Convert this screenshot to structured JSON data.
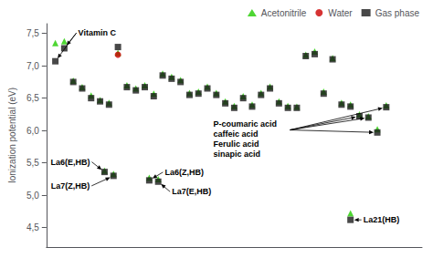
{
  "chart_data": {
    "type": "scatter",
    "ylabel": "Ionization potential (eV)",
    "xlim": [
      0,
      42
    ],
    "ylim": [
      4.2,
      7.65
    ],
    "yticks": [
      {
        "value": 4.5,
        "label": "4,5"
      },
      {
        "value": 5.0,
        "label": "5,0"
      },
      {
        "value": 5.5,
        "label": "5,5"
      },
      {
        "value": 6.0,
        "label": "6,0"
      },
      {
        "value": 6.5,
        "label": "6,5"
      },
      {
        "value": 7.0,
        "label": "7,0"
      },
      {
        "value": 7.5,
        "label": "7,5"
      }
    ],
    "tick_labels": "y",
    "grid": false,
    "legend": "upper right",
    "series": [
      {
        "name": "Acetonitrile",
        "color": "#22cc00",
        "marker": "triangle",
        "x": [
          1,
          2,
          3,
          4,
          5,
          6,
          7,
          8,
          9,
          10,
          11,
          12,
          13,
          14,
          15,
          16,
          17,
          18,
          19,
          20,
          21,
          22,
          23,
          24,
          25,
          26,
          27,
          28,
          29,
          30,
          31,
          32,
          33,
          34,
          35,
          36,
          37,
          38,
          6.5,
          7.5,
          11.5,
          12.5,
          34
        ],
        "values": [
          7.35,
          7.38,
          6.77,
          6.67,
          6.54,
          6.47,
          6.43,
          7.2,
          6.7,
          6.65,
          6.7,
          6.57,
          6.88,
          6.83,
          6.78,
          6.58,
          6.6,
          6.68,
          6.58,
          6.45,
          6.38,
          6.53,
          6.4,
          6.58,
          6.68,
          6.45,
          6.38,
          6.37,
          7.17,
          7.22,
          6.6,
          7.12,
          6.43,
          6.4,
          6.25,
          6.22,
          6.02,
          6.39,
          5.38,
          5.33,
          5.27,
          5.25,
          4.72
        ]
      },
      {
        "name": "Water",
        "color": "#cc0000",
        "marker": "circle",
        "x": [
          8
        ],
        "values": [
          7.17
        ]
      },
      {
        "name": "Gas phase",
        "color": "#1a1a1a",
        "marker": "square",
        "x": [
          1,
          2,
          3,
          4,
          5,
          6,
          7,
          8,
          9,
          10,
          11,
          12,
          13,
          14,
          15,
          16,
          17,
          18,
          19,
          20,
          21,
          22,
          23,
          24,
          25,
          26,
          27,
          28,
          29,
          30,
          31,
          32,
          33,
          34,
          35,
          36,
          37,
          38,
          6.5,
          7.5,
          11.5,
          12.5,
          34
        ],
        "values": [
          7.07,
          7.27,
          6.75,
          6.65,
          6.5,
          6.45,
          6.4,
          7.29,
          6.67,
          6.62,
          6.67,
          6.53,
          6.85,
          6.8,
          6.75,
          6.55,
          6.57,
          6.65,
          6.55,
          6.42,
          6.35,
          6.5,
          6.37,
          6.55,
          6.65,
          6.42,
          6.35,
          6.35,
          7.15,
          7.18,
          6.57,
          7.1,
          6.4,
          6.37,
          6.22,
          6.2,
          5.97,
          6.36,
          5.36,
          5.3,
          5.23,
          5.21,
          4.62
        ]
      }
    ],
    "annotations": [
      {
        "text": "Vitamin C",
        "points": [
          [
            1,
            7.07
          ],
          [
            2,
            7.27
          ]
        ]
      },
      {
        "text": "P-coumaric acid\ncaffeic acid\nFerulic acid\nsinapic acid",
        "points": [
          [
            35,
            6.22
          ],
          [
            36,
            6.2
          ],
          [
            37,
            5.97
          ],
          [
            38,
            6.36
          ]
        ]
      },
      {
        "text": "La6(E,HB)",
        "points": [
          [
            6.5,
            5.36
          ]
        ]
      },
      {
        "text": "La7(Z,HB)",
        "points": [
          [
            7.5,
            5.3
          ]
        ]
      },
      {
        "text": "La6(Z,HB)",
        "points": [
          [
            11.5,
            5.23
          ]
        ]
      },
      {
        "text": "La7(E,HB)",
        "points": [
          [
            12.5,
            5.21
          ]
        ]
      },
      {
        "text": "La21(HB)",
        "points": [
          [
            34,
            4.62
          ]
        ]
      }
    ]
  }
}
